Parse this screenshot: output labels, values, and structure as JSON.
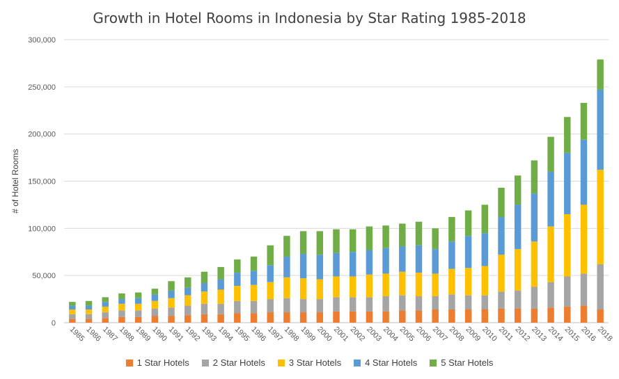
{
  "chart_data": {
    "type": "bar",
    "stacked": true,
    "title": "Growth in Hotel Rooms in Indonesia by Star Rating 1985-2018",
    "ylabel": "# of Hotel Rooms",
    "xlabel": "",
    "ylim": [
      0,
      300000
    ],
    "yticks": [
      "0",
      "50,000",
      "100,000",
      "150,000",
      "200,000",
      "250,000",
      "300,000"
    ],
    "ytick_values": [
      0,
      50000,
      100000,
      150000,
      200000,
      250000,
      300000
    ],
    "grid": true,
    "legend_position": "bottom",
    "categories": [
      "1985",
      "1986",
      "1987",
      "1988",
      "1989",
      "1990",
      "1991",
      "1992",
      "1993",
      "1994",
      "1995",
      "1996",
      "1997",
      "1998",
      "1999",
      "2000",
      "2001",
      "2002",
      "2003",
      "2004",
      "2005",
      "2006",
      "2007",
      "2008",
      "2009",
      "2010",
      "2011",
      "2012",
      "2013",
      "2014",
      "2015",
      "2016",
      "2018"
    ],
    "series": [
      {
        "name": "1 Star Hotels",
        "color": "#ED7D31",
        "values": [
          4000,
          4000,
          5000,
          6000,
          6000,
          7000,
          7000,
          8000,
          9000,
          9000,
          10000,
          10000,
          11000,
          11000,
          11000,
          11000,
          12000,
          12000,
          12000,
          12000,
          13000,
          13000,
          14000,
          14000,
          14000,
          14000,
          15000,
          15000,
          15000,
          16000,
          17000,
          18000,
          14000
        ]
      },
      {
        "name": "2 Star Hotels",
        "color": "#A5A5A5",
        "values": [
          5000,
          5000,
          6000,
          7000,
          7000,
          8000,
          9000,
          10000,
          11000,
          11000,
          13000,
          13000,
          14000,
          15000,
          14000,
          14000,
          15000,
          15000,
          15000,
          16000,
          16000,
          15000,
          14000,
          16000,
          15000,
          15000,
          18000,
          19000,
          23000,
          27000,
          32000,
          34000,
          48000
        ]
      },
      {
        "name": "3 Star Hotels",
        "color": "#FFC000",
        "values": [
          5000,
          5000,
          6000,
          7000,
          7000,
          8000,
          10000,
          11000,
          13000,
          15000,
          16000,
          17000,
          18000,
          22000,
          22000,
          21000,
          22000,
          22000,
          24000,
          24000,
          25000,
          25000,
          24000,
          27000,
          29000,
          31000,
          39000,
          44000,
          48000,
          59000,
          66000,
          73000,
          100000
        ]
      },
      {
        "name": "4 Star Hotels",
        "color": "#5B9BD5",
        "values": [
          4000,
          4000,
          5000,
          5000,
          6000,
          7000,
          8000,
          8000,
          9000,
          11000,
          14000,
          15000,
          18000,
          22000,
          26000,
          26000,
          25000,
          26000,
          26000,
          27000,
          27000,
          29000,
          26000,
          29000,
          34000,
          35000,
          40000,
          47000,
          51000,
          58000,
          65000,
          69000,
          85000
        ]
      },
      {
        "name": "5 Star Hotels",
        "color": "#70AD47",
        "values": [
          4000,
          5000,
          5000,
          6000,
          6000,
          6000,
          10000,
          11000,
          12000,
          13000,
          14000,
          15000,
          21000,
          22000,
          24000,
          25000,
          25000,
          24000,
          25000,
          24000,
          24000,
          25000,
          22000,
          26000,
          27000,
          30000,
          31000,
          31000,
          35000,
          37000,
          38000,
          39000,
          32000
        ]
      }
    ]
  }
}
